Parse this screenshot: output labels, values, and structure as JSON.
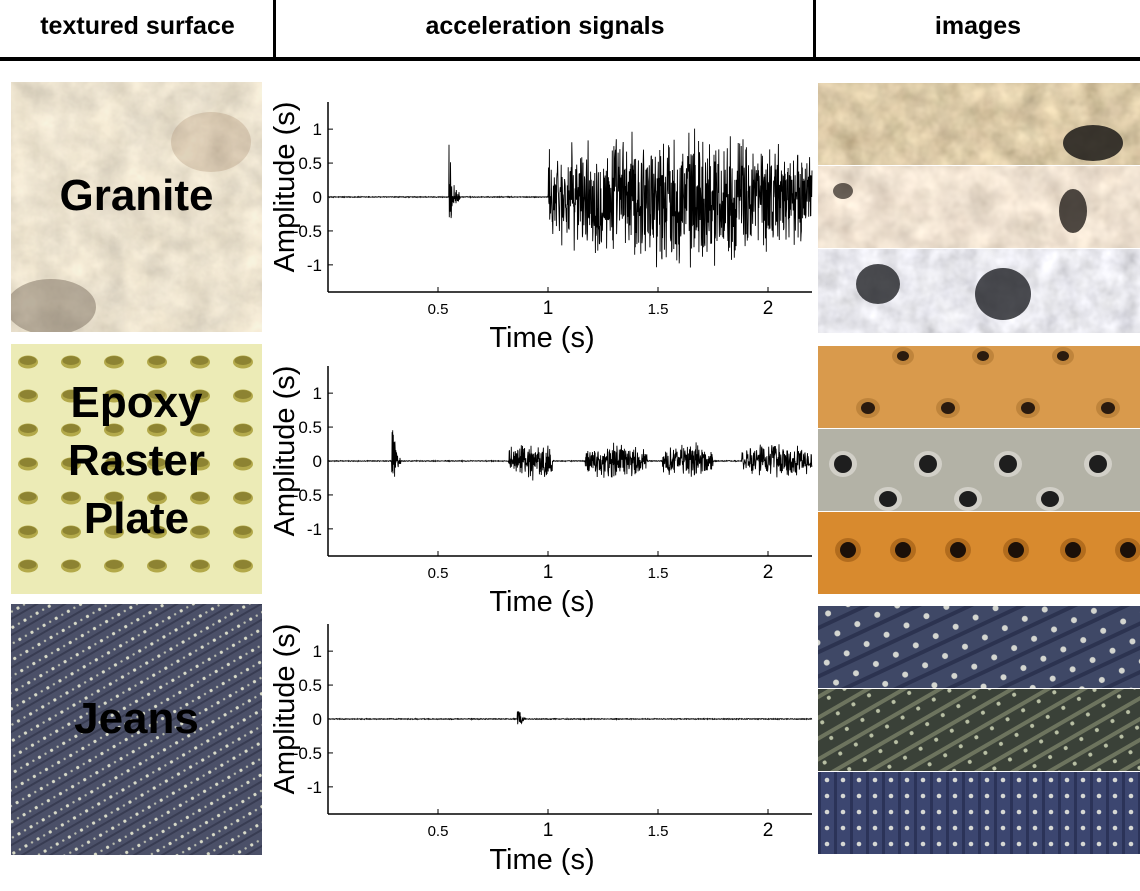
{
  "header": {
    "col1": "textured surface",
    "col2": "acceleration signals",
    "col3": "images"
  },
  "rows": [
    {
      "label_lines": [
        "Granite"
      ],
      "texture": "granite",
      "palette": {
        "base": "#cbbfae",
        "dark": "#7d6e5e",
        "light": "#e9e3d8",
        "accent": "#a98b6a"
      }
    },
    {
      "label_lines": [
        "Epoxy",
        "Raster",
        "Plate"
      ],
      "texture": "perforated-plate",
      "palette": {
        "base": "#ecebb6",
        "dark": "#a39a47",
        "light": "#f6f5d6",
        "accent": "#c9c078"
      }
    },
    {
      "label_lines": [
        "Jeans"
      ],
      "texture": "denim",
      "palette": {
        "base": "#4b5068",
        "dark": "#2e3245",
        "light": "#cfd2c4",
        "accent": "#6b708a"
      }
    }
  ],
  "chart_data": [
    {
      "type": "line",
      "xlabel": "Time (s)",
      "ylabel": "Amplitude (s)",
      "xlim": [
        0,
        2.2
      ],
      "ylim": [
        -1.4,
        1.4
      ],
      "xticks": [
        0.5,
        1,
        1.5,
        2
      ],
      "xtick_labels": [
        "0.5",
        "1",
        "1.5",
        "2"
      ],
      "yticks": [
        1,
        0.5,
        0,
        -0.5,
        -1
      ],
      "ytick_labels": [
        "1",
        "0.5",
        "0",
        "-0.5",
        "-1"
      ],
      "series": [
        {
          "values_note_free": true,
          "bursts": [
            {
              "start": 0.55,
              "end": 0.6,
              "amp": 0.8
            },
            {
              "start": 1.0,
              "end": 2.2,
              "amp": 1.1
            }
          ]
        }
      ]
    },
    {
      "type": "line",
      "xlabel": "Time (s)",
      "ylabel": "Amplitude (s)",
      "xlim": [
        0,
        2.2
      ],
      "ylim": [
        -1.4,
        1.4
      ],
      "xticks": [
        0.5,
        1,
        1.5,
        2
      ],
      "xtick_labels": [
        "0.5",
        "1",
        "1.5",
        "2"
      ],
      "yticks": [
        1,
        0.5,
        0,
        -0.5,
        -1
      ],
      "ytick_labels": [
        "1",
        "0.5",
        "0",
        "-0.5",
        "-1"
      ],
      "series": [
        {
          "bursts": [
            {
              "start": 0.29,
              "end": 0.33,
              "amp": 0.85
            },
            {
              "start": 0.82,
              "end": 1.02,
              "amp": 0.3
            },
            {
              "start": 1.17,
              "end": 1.45,
              "amp": 0.3
            },
            {
              "start": 1.52,
              "end": 1.75,
              "amp": 0.3
            },
            {
              "start": 1.88,
              "end": 2.2,
              "amp": 0.3
            }
          ]
        }
      ]
    },
    {
      "type": "line",
      "xlabel": "Time (s)",
      "ylabel": "Amplitude (s)",
      "xlim": [
        0,
        2.2
      ],
      "ylim": [
        -1.4,
        1.4
      ],
      "xticks": [
        0.5,
        1,
        1.5,
        2
      ],
      "xtick_labels": [
        "0.5",
        "1",
        "1.5",
        "2"
      ],
      "yticks": [
        1,
        0.5,
        0,
        -0.5,
        -1
      ],
      "ytick_labels": [
        "1",
        "0.5",
        "0",
        "-0.5",
        "-1"
      ],
      "series": [
        {
          "bursts": [
            {
              "start": 0.86,
              "end": 0.9,
              "amp": 0.3
            },
            {
              "start": 1.08,
              "end": 1.11,
              "amp": 0.02
            }
          ]
        }
      ]
    }
  ]
}
